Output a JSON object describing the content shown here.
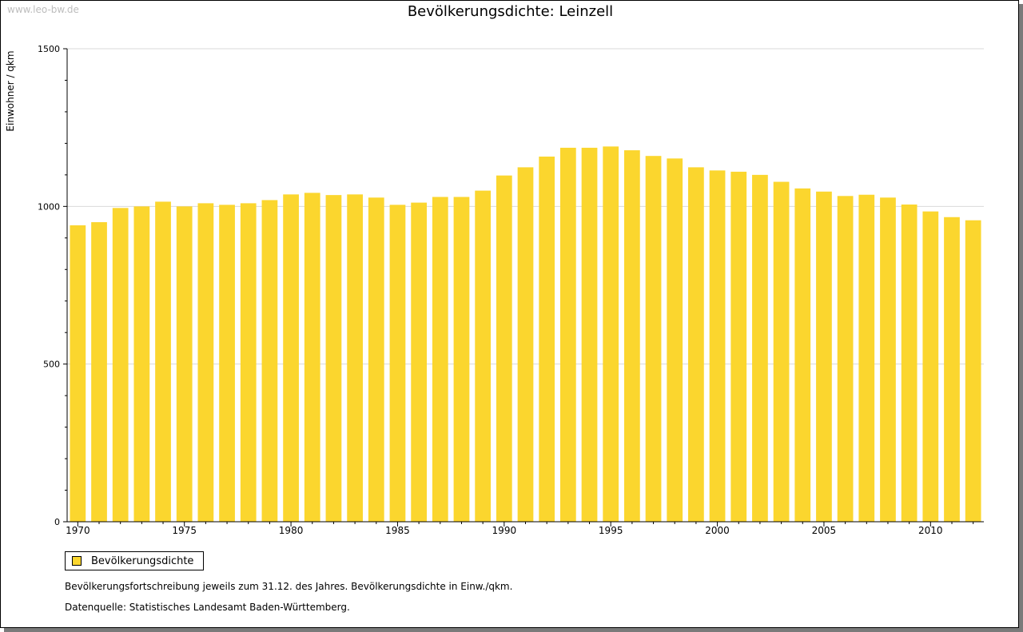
{
  "watermark": "www.leo-bw.de",
  "chart_data": {
    "type": "bar",
    "title": "Bevölkerungsdichte: Leinzell",
    "xlabel": "",
    "ylabel": "Einwohner / qkm",
    "ylim": [
      0,
      1500
    ],
    "yticks": [
      0,
      500,
      1000,
      1500
    ],
    "xtick_labels": [
      "1970",
      "1975",
      "1980",
      "1985",
      "1990",
      "1995",
      "2000",
      "2005",
      "2010"
    ],
    "grid": true,
    "legend_position": "bottom-left",
    "color": "#FBD62E",
    "categories": [
      1970,
      1971,
      1972,
      1973,
      1974,
      1975,
      1976,
      1977,
      1978,
      1979,
      1980,
      1981,
      1982,
      1983,
      1984,
      1985,
      1986,
      1987,
      1988,
      1989,
      1990,
      1991,
      1992,
      1993,
      1994,
      1995,
      1996,
      1997,
      1998,
      1999,
      2000,
      2001,
      2002,
      2003,
      2004,
      2005,
      2006,
      2007,
      2008,
      2009,
      2010,
      2011,
      2012
    ],
    "series": [
      {
        "name": "Bevölkerungsdichte",
        "values": [
          940,
          950,
          995,
          1000,
          1015,
          1000,
          1010,
          1005,
          1010,
          1020,
          1038,
          1043,
          1036,
          1038,
          1028,
          1005,
          1012,
          1030,
          1030,
          1050,
          1098,
          1124,
          1158,
          1186,
          1186,
          1190,
          1178,
          1160,
          1152,
          1124,
          1114,
          1110,
          1100,
          1078,
          1057,
          1047,
          1033,
          1037,
          1028,
          1006,
          984,
          966,
          956
        ]
      }
    ]
  },
  "notes": [
    "Bevölkerungsfortschreibung jeweils zum 31.12. des Jahres. Bevölkerungsdichte in Einw./qkm.",
    "Datenquelle: Statistisches Landesamt Baden-Württemberg."
  ]
}
